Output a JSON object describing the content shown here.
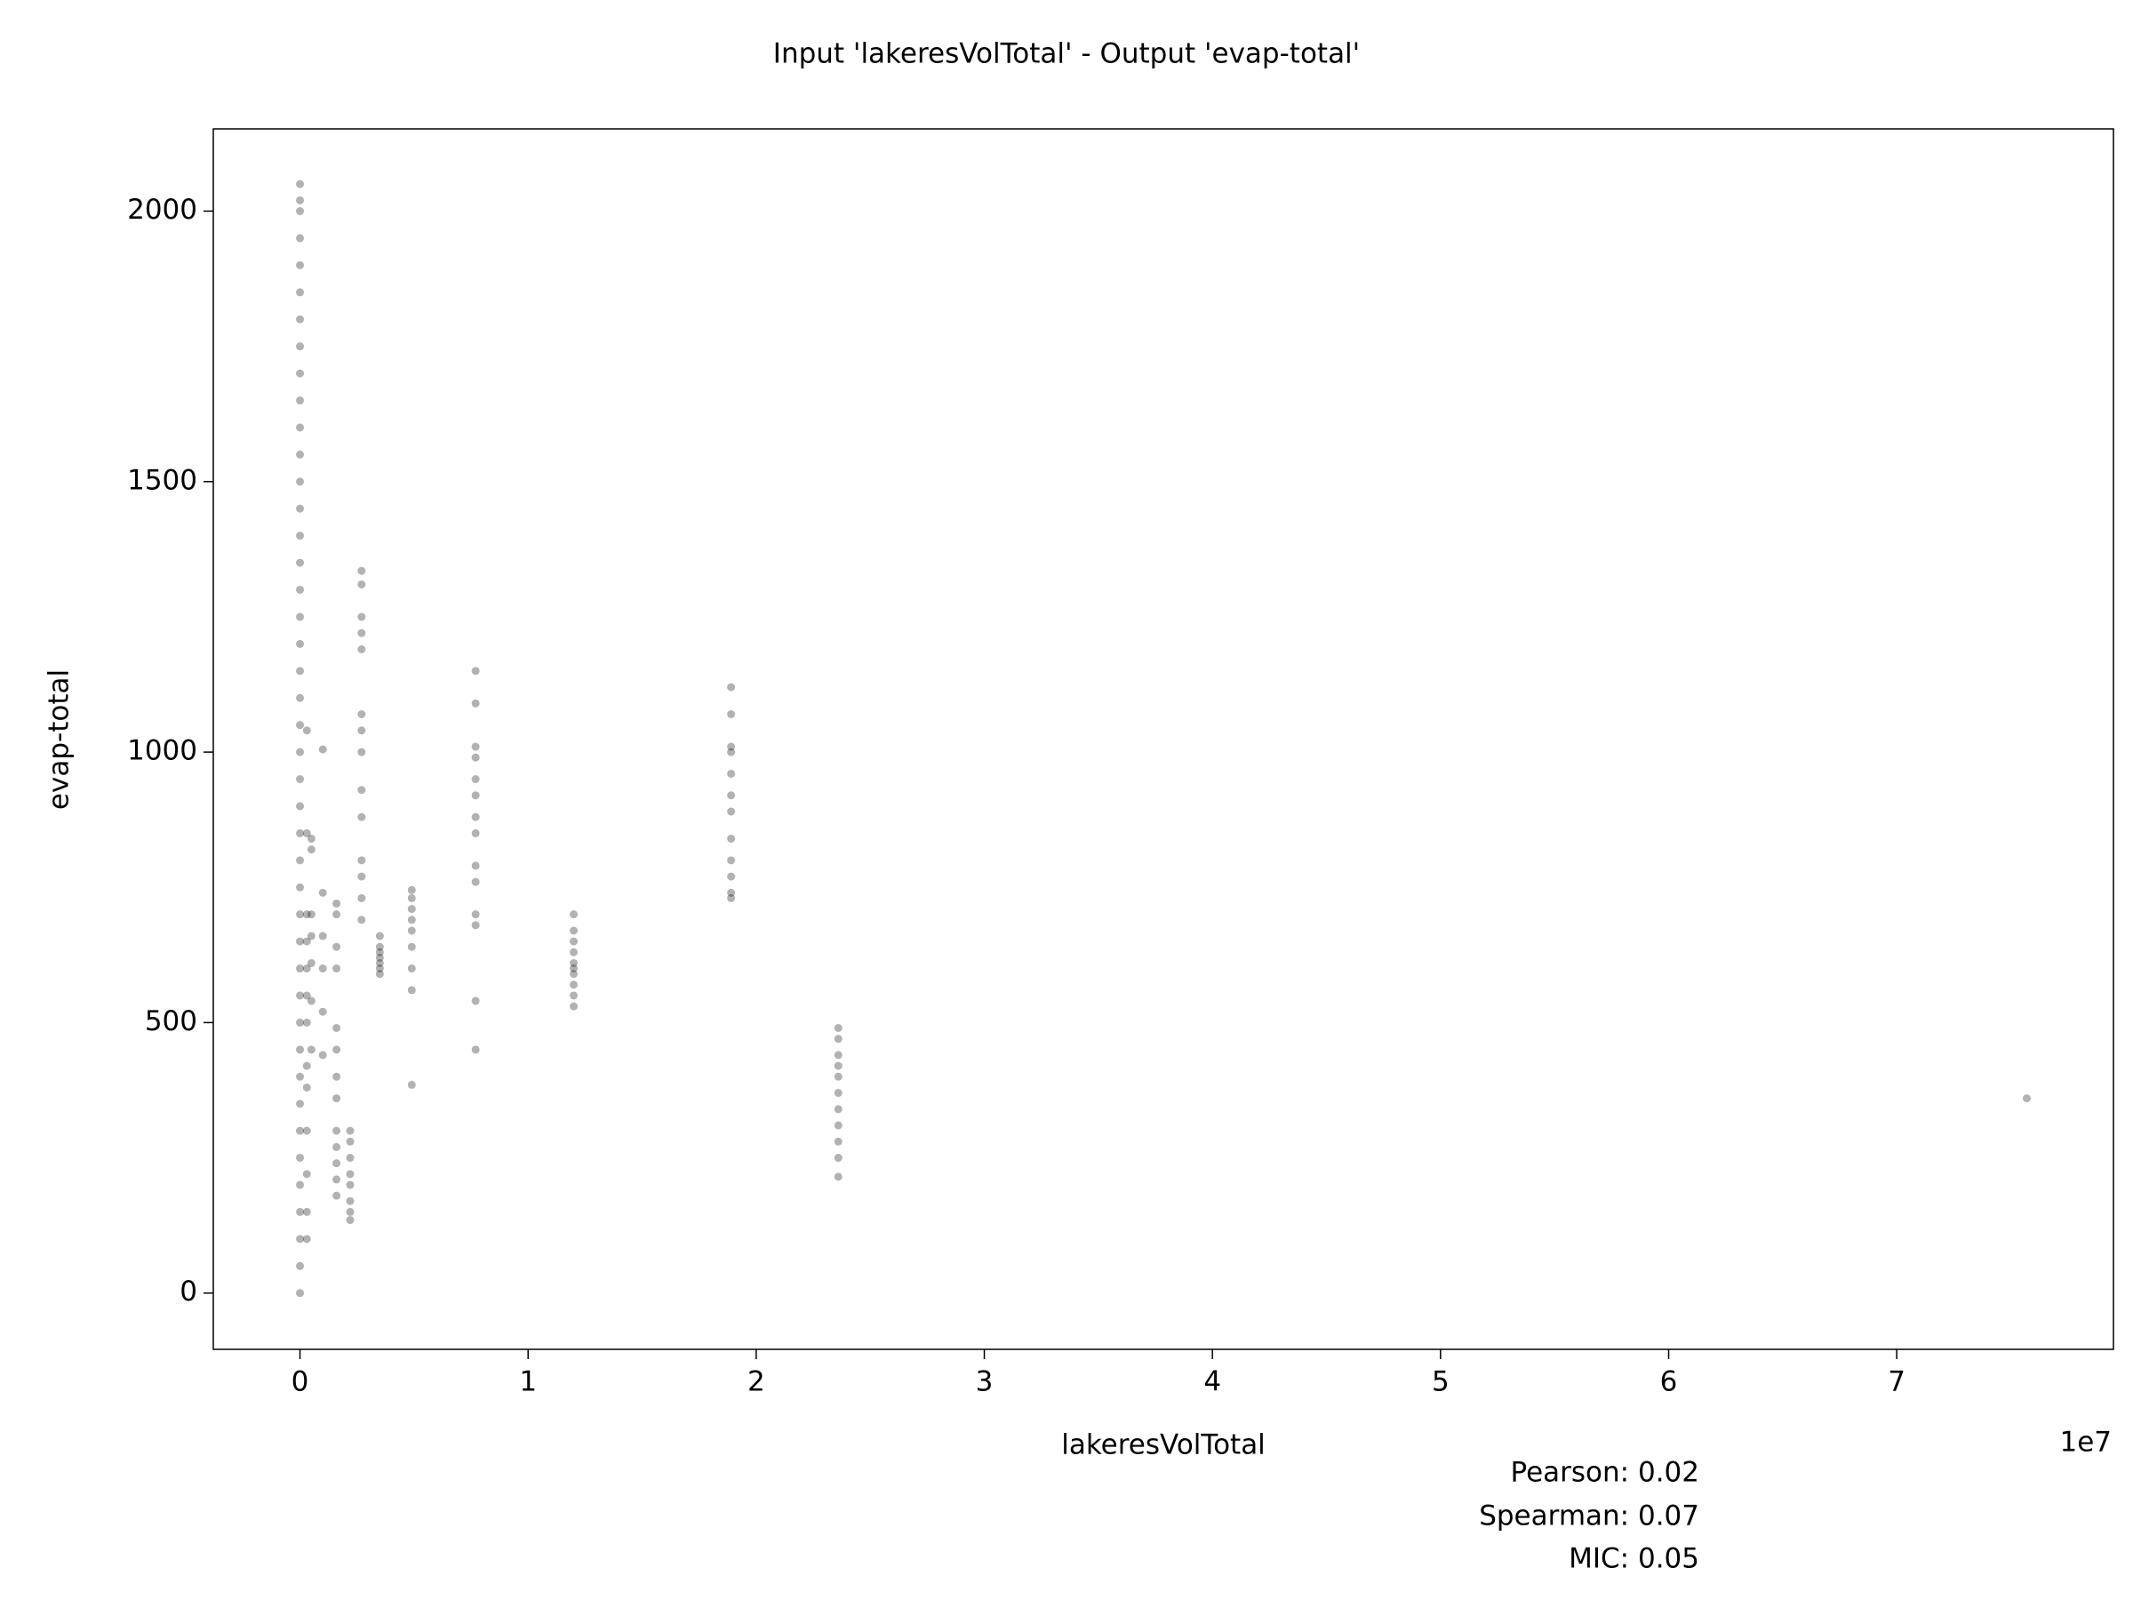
{
  "chart_data": {
    "type": "scatter",
    "title": "Input 'lakeresVolTotal' - Output 'evap-total'",
    "xlabel": "lakeresVolTotal",
    "ylabel": "evap-total",
    "x_offset_label": "1e7",
    "annotations": [
      "Pearson: 0.02",
      "Spearman: 0.07",
      "MIC: 0.05"
    ],
    "color": "#000000",
    "xlim": [
      -0.38,
      7.95
    ],
    "ylim": [
      -104,
      2152
    ],
    "xticks": [
      0,
      1,
      2,
      3,
      4,
      5,
      6,
      7
    ],
    "yticks": [
      0,
      500,
      1000,
      1500,
      2000
    ],
    "x": [
      0,
      0,
      0,
      0,
      0,
      0,
      0,
      0,
      0,
      0,
      0,
      0,
      0,
      0,
      0,
      0,
      0,
      0,
      0,
      0,
      0,
      0,
      0,
      0,
      0,
      0,
      0,
      0,
      0,
      0,
      0,
      0,
      0,
      0,
      0,
      0,
      0,
      0,
      0,
      0,
      0,
      0,
      0,
      0.03,
      0.03,
      0.03,
      0.03,
      0.03,
      0.03,
      0.03,
      0.03,
      0.03,
      0.03,
      0.03,
      0.03,
      0.03,
      0.05,
      0.05,
      0.05,
      0.05,
      0.05,
      0.05,
      0.05,
      0.1,
      0.1,
      0.1,
      0.1,
      0.1,
      0.1,
      0.16,
      0.16,
      0.16,
      0.16,
      0.16,
      0.16,
      0.16,
      0.16,
      0.16,
      0.16,
      0.16,
      0.16,
      0.16,
      0.22,
      0.22,
      0.22,
      0.22,
      0.22,
      0.22,
      0.22,
      0.22,
      0.27,
      0.27,
      0.27,
      0.27,
      0.27,
      0.27,
      0.27,
      0.27,
      0.27,
      0.27,
      0.27,
      0.27,
      0.27,
      0.27,
      0.35,
      0.35,
      0.35,
      0.35,
      0.35,
      0.35,
      0.35,
      0.49,
      0.49,
      0.49,
      0.49,
      0.49,
      0.49,
      0.49,
      0.49,
      0.49,
      0.77,
      0.77,
      0.77,
      0.77,
      0.77,
      0.77,
      0.77,
      0.77,
      0.77,
      0.77,
      0.77,
      0.77,
      0.77,
      0.77,
      1.2,
      1.2,
      1.2,
      1.2,
      1.2,
      1.2,
      1.2,
      1.2,
      1.2,
      1.2,
      1.89,
      1.89,
      1.89,
      1.89,
      1.89,
      1.89,
      1.89,
      1.89,
      1.89,
      1.89,
      1.89,
      1.89,
      2.36,
      2.36,
      2.36,
      2.36,
      2.36,
      2.36,
      2.36,
      2.36,
      2.36,
      2.36,
      2.36,
      7.57
    ],
    "y": [
      0,
      50,
      100,
      150,
      200,
      250,
      300,
      350,
      400,
      450,
      500,
      550,
      600,
      650,
      700,
      750,
      800,
      850,
      900,
      950,
      1000,
      1050,
      1100,
      1150,
      1200,
      1250,
      1300,
      1350,
      1400,
      1450,
      1500,
      1550,
      1600,
      1650,
      1700,
      1750,
      1800,
      1850,
      1900,
      1950,
      2000,
      2020,
      2050,
      1040,
      850,
      700,
      650,
      600,
      550,
      500,
      420,
      380,
      300,
      220,
      150,
      100,
      840,
      820,
      700,
      660,
      610,
      540,
      450,
      1005,
      740,
      660,
      600,
      520,
      440,
      720,
      700,
      640,
      600,
      490,
      450,
      400,
      360,
      300,
      270,
      240,
      210,
      180,
      300,
      280,
      250,
      220,
      200,
      170,
      150,
      135,
      1335,
      1310,
      1250,
      1220,
      1190,
      1070,
      1040,
      1000,
      930,
      880,
      800,
      770,
      730,
      690,
      660,
      640,
      630,
      620,
      610,
      600,
      590,
      745,
      730,
      710,
      690,
      670,
      640,
      600,
      560,
      385,
      1150,
      1090,
      1010,
      990,
      950,
      920,
      880,
      850,
      790,
      760,
      700,
      680,
      540,
      450,
      700,
      670,
      650,
      630,
      610,
      600,
      590,
      570,
      550,
      530,
      1120,
      1070,
      1010,
      1000,
      960,
      920,
      890,
      840,
      800,
      770,
      740,
      730,
      490,
      470,
      440,
      420,
      400,
      370,
      340,
      310,
      280,
      250,
      215,
      360
    ]
  }
}
